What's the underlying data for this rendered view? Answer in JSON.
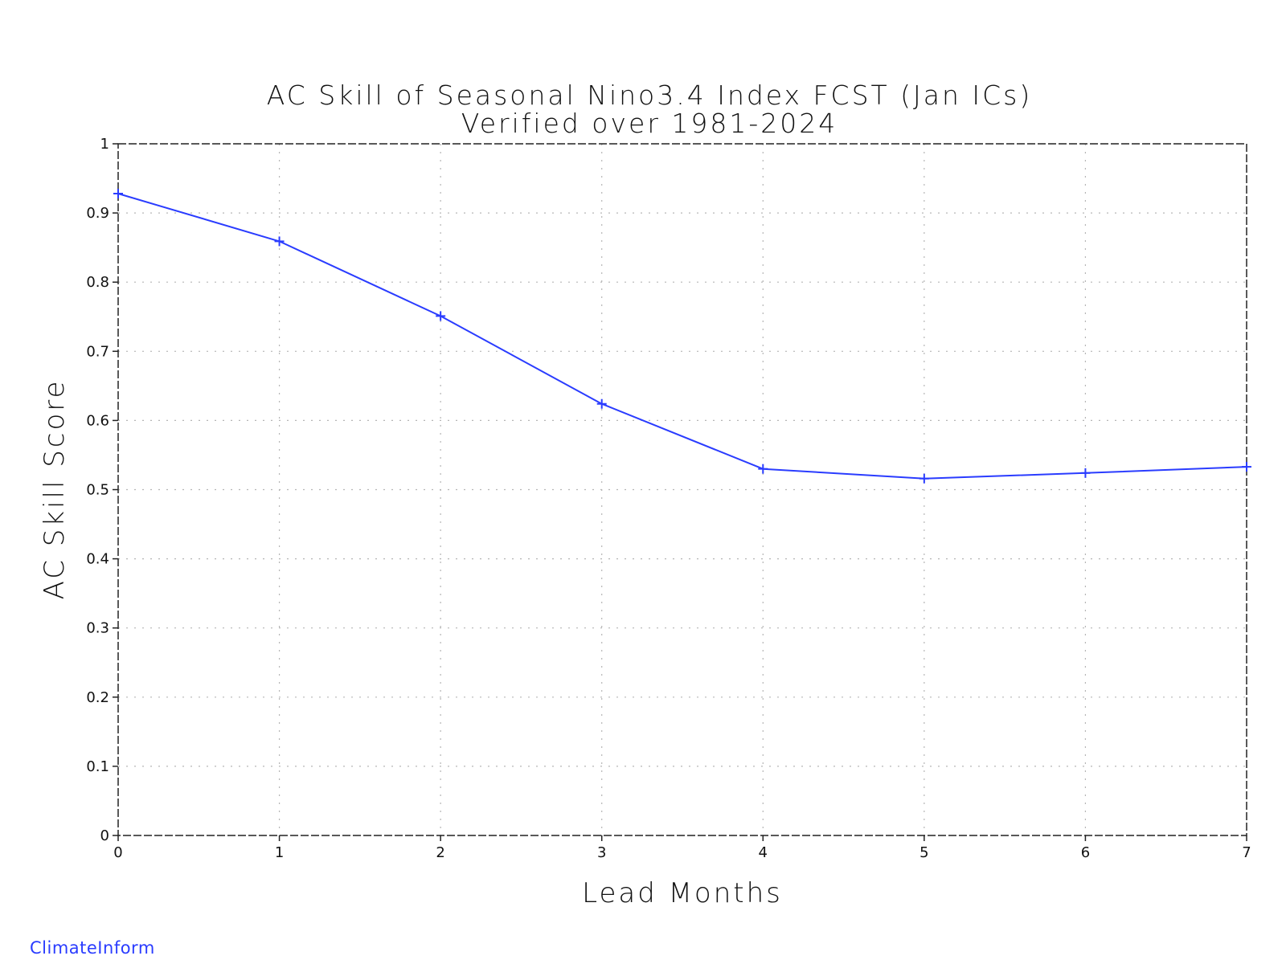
{
  "chart_data": {
    "type": "line",
    "title": "AC Skill of Seasonal Nino3.4 Index FCST (Jan ICs)",
    "subtitle": "Verified over 1981-2024",
    "xlabel": "Lead Months",
    "ylabel": "AC Skill Score",
    "xlim": [
      0,
      7
    ],
    "ylim": [
      0,
      1
    ],
    "x_ticks": [
      "0",
      "1",
      "2",
      "3",
      "4",
      "5",
      "6",
      "7"
    ],
    "y_ticks": [
      "0",
      "0.1",
      "0.2",
      "0.3",
      "0.4",
      "0.5",
      "0.6",
      "0.7",
      "0.8",
      "0.9",
      "1"
    ],
    "grid": true,
    "series": [
      {
        "color": "#2a3cff",
        "marker": "plus",
        "x": [
          0,
          1,
          2,
          3,
          4,
          5,
          6,
          7
        ],
        "y": [
          0.928,
          0.859,
          0.751,
          0.624,
          0.53,
          0.516,
          0.524,
          0.533
        ]
      }
    ]
  },
  "credit": "ClimateInform"
}
